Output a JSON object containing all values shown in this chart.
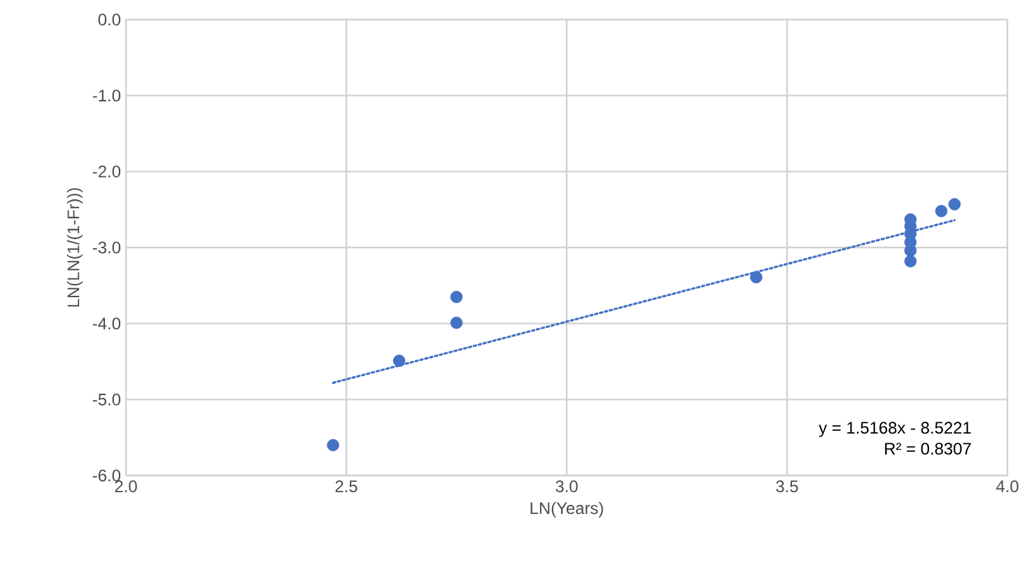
{
  "chart_data": {
    "type": "scatter",
    "xlabel": "LN(Years)",
    "ylabel": "LN(LN(1/(1-Fr)))",
    "xlim": [
      2.0,
      4.0
    ],
    "ylim": [
      -6.0,
      0.0
    ],
    "xticks": [
      {
        "value": 2.0,
        "label": "2.0"
      },
      {
        "value": 2.5,
        "label": "2.5"
      },
      {
        "value": 3.0,
        "label": "3.0"
      },
      {
        "value": 3.5,
        "label": "3.5"
      },
      {
        "value": 4.0,
        "label": "4.0"
      }
    ],
    "yticks": [
      {
        "value": -6.0,
        "label": "-6.0"
      },
      {
        "value": -5.0,
        "label": "-5.0"
      },
      {
        "value": -4.0,
        "label": "-4.0"
      },
      {
        "value": -3.0,
        "label": "-3.0"
      },
      {
        "value": -2.0,
        "label": "-2.0"
      },
      {
        "value": -1.0,
        "label": "-1.0"
      },
      {
        "value": 0.0,
        "label": "0.0"
      }
    ],
    "grid": true,
    "marker": "circle",
    "series": [
      {
        "color": "#4472c4",
        "x": [
          2.47,
          2.62,
          2.75,
          2.75,
          3.43,
          3.78,
          3.78,
          3.78,
          3.78,
          3.78,
          3.78,
          3.85,
          3.88
        ],
        "values": [
          -5.6,
          -4.49,
          -3.65,
          -3.99,
          -3.39,
          -2.63,
          -2.72,
          -2.82,
          -2.93,
          -3.04,
          -3.18,
          -2.52,
          -2.43
        ]
      },
      {
        "type": "line",
        "color": "#4472c4",
        "line_style": "dotted",
        "marker": "none",
        "x": [
          2.47,
          3.88
        ],
        "values": [
          -4.78,
          -2.64
        ]
      }
    ],
    "annotations": [
      "y = 1.5168x - 8.5221",
      "R² = 0.8307"
    ]
  }
}
